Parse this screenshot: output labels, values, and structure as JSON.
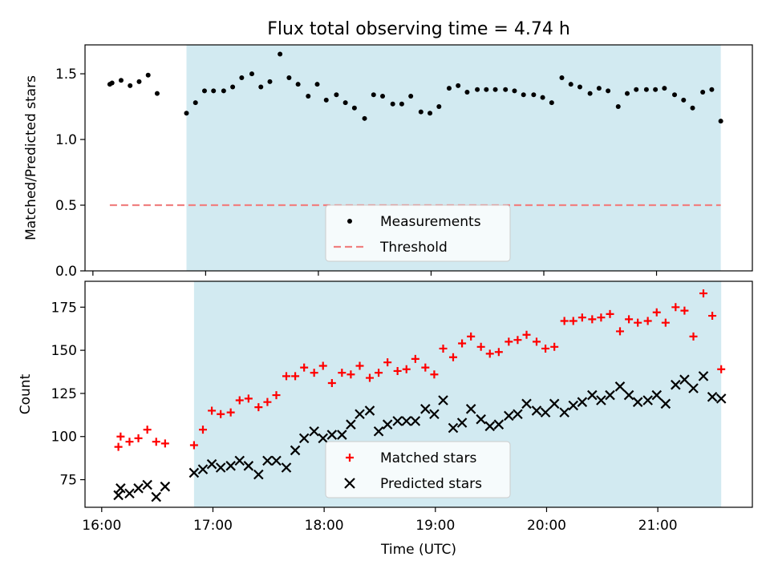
{
  "title": "Flux total observing time = 4.74 h",
  "colors": {
    "shade": "#add8e6",
    "matched": "#ff0000",
    "predicted": "#000000",
    "measurement": "#000000",
    "threshold": "#f08080"
  },
  "chart_data": [
    {
      "type": "scatter",
      "ylabel": "Matched/Predicted stars",
      "xlim": [
        15.93,
        21.85
      ],
      "ylim": [
        0,
        1.72
      ],
      "yticks": [
        0.0,
        0.5,
        1.0,
        1.5
      ],
      "ytick_labels": [
        "0.0",
        "0.5",
        "1.0",
        "1.5"
      ],
      "shaded_span": [
        16.83,
        21.57
      ],
      "grid": false,
      "legend_position": "lower-center",
      "series": [
        {
          "name": "Measurements",
          "marker": "dot",
          "points": [
            [
              16.15,
              1.42
            ],
            [
              16.17,
              1.43
            ],
            [
              16.25,
              1.45
            ],
            [
              16.33,
              1.41
            ],
            [
              16.41,
              1.44
            ],
            [
              16.49,
              1.49
            ],
            [
              16.57,
              1.35
            ],
            [
              16.83,
              1.2
            ],
            [
              16.91,
              1.28
            ],
            [
              16.99,
              1.37
            ],
            [
              17.07,
              1.37
            ],
            [
              17.16,
              1.37
            ],
            [
              17.24,
              1.4
            ],
            [
              17.32,
              1.47
            ],
            [
              17.41,
              1.5
            ],
            [
              17.49,
              1.4
            ],
            [
              17.57,
              1.44
            ],
            [
              17.66,
              1.65
            ],
            [
              17.74,
              1.47
            ],
            [
              17.82,
              1.42
            ],
            [
              17.91,
              1.33
            ],
            [
              17.99,
              1.42
            ],
            [
              18.07,
              1.3
            ],
            [
              18.16,
              1.34
            ],
            [
              18.24,
              1.28
            ],
            [
              18.32,
              1.24
            ],
            [
              18.41,
              1.16
            ],
            [
              18.49,
              1.34
            ],
            [
              18.57,
              1.33
            ],
            [
              18.66,
              1.27
            ],
            [
              18.74,
              1.27
            ],
            [
              18.82,
              1.33
            ],
            [
              18.91,
              1.21
            ],
            [
              18.99,
              1.2
            ],
            [
              19.07,
              1.25
            ],
            [
              19.16,
              1.39
            ],
            [
              19.24,
              1.41
            ],
            [
              19.32,
              1.36
            ],
            [
              19.41,
              1.38
            ],
            [
              19.49,
              1.38
            ],
            [
              19.57,
              1.38
            ],
            [
              19.66,
              1.38
            ],
            [
              19.74,
              1.37
            ],
            [
              19.82,
              1.34
            ],
            [
              19.91,
              1.34
            ],
            [
              19.99,
              1.32
            ],
            [
              20.07,
              1.28
            ],
            [
              20.16,
              1.47
            ],
            [
              20.24,
              1.42
            ],
            [
              20.32,
              1.4
            ],
            [
              20.41,
              1.35
            ],
            [
              20.49,
              1.39
            ],
            [
              20.57,
              1.37
            ],
            [
              20.66,
              1.25
            ],
            [
              20.74,
              1.35
            ],
            [
              20.82,
              1.38
            ],
            [
              20.91,
              1.38
            ],
            [
              20.99,
              1.38
            ],
            [
              21.07,
              1.39
            ],
            [
              21.16,
              1.34
            ],
            [
              21.24,
              1.3
            ],
            [
              21.32,
              1.24
            ],
            [
              21.41,
              1.36
            ],
            [
              21.49,
              1.38
            ],
            [
              21.57,
              1.14
            ]
          ]
        },
        {
          "name": "Threshold",
          "marker": "dashed-line",
          "points": [
            [
              16.15,
              0.5
            ],
            [
              21.57,
              0.5
            ]
          ]
        }
      ]
    },
    {
      "type": "scatter",
      "xlabel": "Time (UTC)",
      "ylabel": "Count",
      "xlim": [
        15.85,
        21.85
      ],
      "ylim": [
        59,
        190
      ],
      "xticks": [
        16,
        17,
        18,
        19,
        20,
        21
      ],
      "xtick_labels": [
        "16:00",
        "17:00",
        "18:00",
        "19:00",
        "20:00",
        "21:00"
      ],
      "yticks": [
        75,
        100,
        125,
        150,
        175
      ],
      "ytick_labels": [
        "75",
        "100",
        "125",
        "150",
        "175"
      ],
      "shaded_span": [
        16.83,
        21.57
      ],
      "grid": false,
      "legend_position": "lower-center",
      "series": [
        {
          "name": "Matched stars",
          "marker": "plus",
          "points": [
            [
              16.15,
              94
            ],
            [
              16.17,
              100
            ],
            [
              16.25,
              97
            ],
            [
              16.33,
              99
            ],
            [
              16.41,
              104
            ],
            [
              16.49,
              97
            ],
            [
              16.57,
              96
            ],
            [
              16.83,
              95
            ],
            [
              16.91,
              104
            ],
            [
              16.99,
              115
            ],
            [
              17.07,
              113
            ],
            [
              17.16,
              114
            ],
            [
              17.24,
              121
            ],
            [
              17.32,
              122
            ],
            [
              17.41,
              117
            ],
            [
              17.49,
              120
            ],
            [
              17.57,
              124
            ],
            [
              17.66,
              135
            ],
            [
              17.74,
              135
            ],
            [
              17.82,
              140
            ],
            [
              17.91,
              137
            ],
            [
              17.99,
              141
            ],
            [
              18.07,
              131
            ],
            [
              18.16,
              137
            ],
            [
              18.24,
              136
            ],
            [
              18.32,
              141
            ],
            [
              18.41,
              134
            ],
            [
              18.49,
              137
            ],
            [
              18.57,
              143
            ],
            [
              18.66,
              138
            ],
            [
              18.74,
              139
            ],
            [
              18.82,
              145
            ],
            [
              18.91,
              140
            ],
            [
              18.99,
              136
            ],
            [
              19.07,
              151
            ],
            [
              19.16,
              146
            ],
            [
              19.24,
              154
            ],
            [
              19.32,
              158
            ],
            [
              19.41,
              152
            ],
            [
              19.49,
              148
            ],
            [
              19.57,
              149
            ],
            [
              19.66,
              155
            ],
            [
              19.74,
              156
            ],
            [
              19.82,
              159
            ],
            [
              19.91,
              155
            ],
            [
              19.99,
              151
            ],
            [
              20.07,
              152
            ],
            [
              20.16,
              167
            ],
            [
              20.24,
              167
            ],
            [
              20.32,
              169
            ],
            [
              20.41,
              168
            ],
            [
              20.49,
              169
            ],
            [
              20.57,
              171
            ],
            [
              20.66,
              161
            ],
            [
              20.74,
              168
            ],
            [
              20.82,
              166
            ],
            [
              20.91,
              167
            ],
            [
              20.99,
              172
            ],
            [
              21.07,
              166
            ],
            [
              21.16,
              175
            ],
            [
              21.24,
              173
            ],
            [
              21.32,
              158
            ],
            [
              21.41,
              183
            ],
            [
              21.49,
              170
            ],
            [
              21.57,
              139
            ]
          ]
        },
        {
          "name": "Predicted stars",
          "marker": "x",
          "points": [
            [
              16.15,
              66
            ],
            [
              16.17,
              70
            ],
            [
              16.25,
              67
            ],
            [
              16.33,
              70
            ],
            [
              16.41,
              72
            ],
            [
              16.49,
              65
            ],
            [
              16.57,
              71
            ],
            [
              16.83,
              79
            ],
            [
              16.91,
              81
            ],
            [
              16.99,
              84
            ],
            [
              17.07,
              82
            ],
            [
              17.16,
              83
            ],
            [
              17.24,
              86
            ],
            [
              17.32,
              83
            ],
            [
              17.41,
              78
            ],
            [
              17.49,
              86
            ],
            [
              17.57,
              86
            ],
            [
              17.66,
              82
            ],
            [
              17.74,
              92
            ],
            [
              17.82,
              99
            ],
            [
              17.91,
              103
            ],
            [
              17.99,
              99
            ],
            [
              18.07,
              101
            ],
            [
              18.16,
              101
            ],
            [
              18.24,
              107
            ],
            [
              18.32,
              113
            ],
            [
              18.41,
              115
            ],
            [
              18.49,
              103
            ],
            [
              18.57,
              107
            ],
            [
              18.66,
              109
            ],
            [
              18.74,
              109
            ],
            [
              18.82,
              109
            ],
            [
              18.91,
              116
            ],
            [
              18.99,
              113
            ],
            [
              19.07,
              121
            ],
            [
              19.16,
              105
            ],
            [
              19.24,
              108
            ],
            [
              19.32,
              116
            ],
            [
              19.41,
              110
            ],
            [
              19.49,
              106
            ],
            [
              19.57,
              107
            ],
            [
              19.66,
              112
            ],
            [
              19.74,
              113
            ],
            [
              19.82,
              119
            ],
            [
              19.91,
              115
            ],
            [
              19.99,
              114
            ],
            [
              20.07,
              119
            ],
            [
              20.16,
              114
            ],
            [
              20.24,
              118
            ],
            [
              20.32,
              120
            ],
            [
              20.41,
              124
            ],
            [
              20.49,
              121
            ],
            [
              20.57,
              124
            ],
            [
              20.66,
              129
            ],
            [
              20.74,
              124
            ],
            [
              20.82,
              120
            ],
            [
              20.91,
              121
            ],
            [
              20.99,
              124
            ],
            [
              21.07,
              119
            ],
            [
              21.16,
              130
            ],
            [
              21.24,
              133
            ],
            [
              21.32,
              128
            ],
            [
              21.41,
              135
            ],
            [
              21.49,
              123
            ],
            [
              21.57,
              122
            ]
          ]
        }
      ]
    }
  ]
}
